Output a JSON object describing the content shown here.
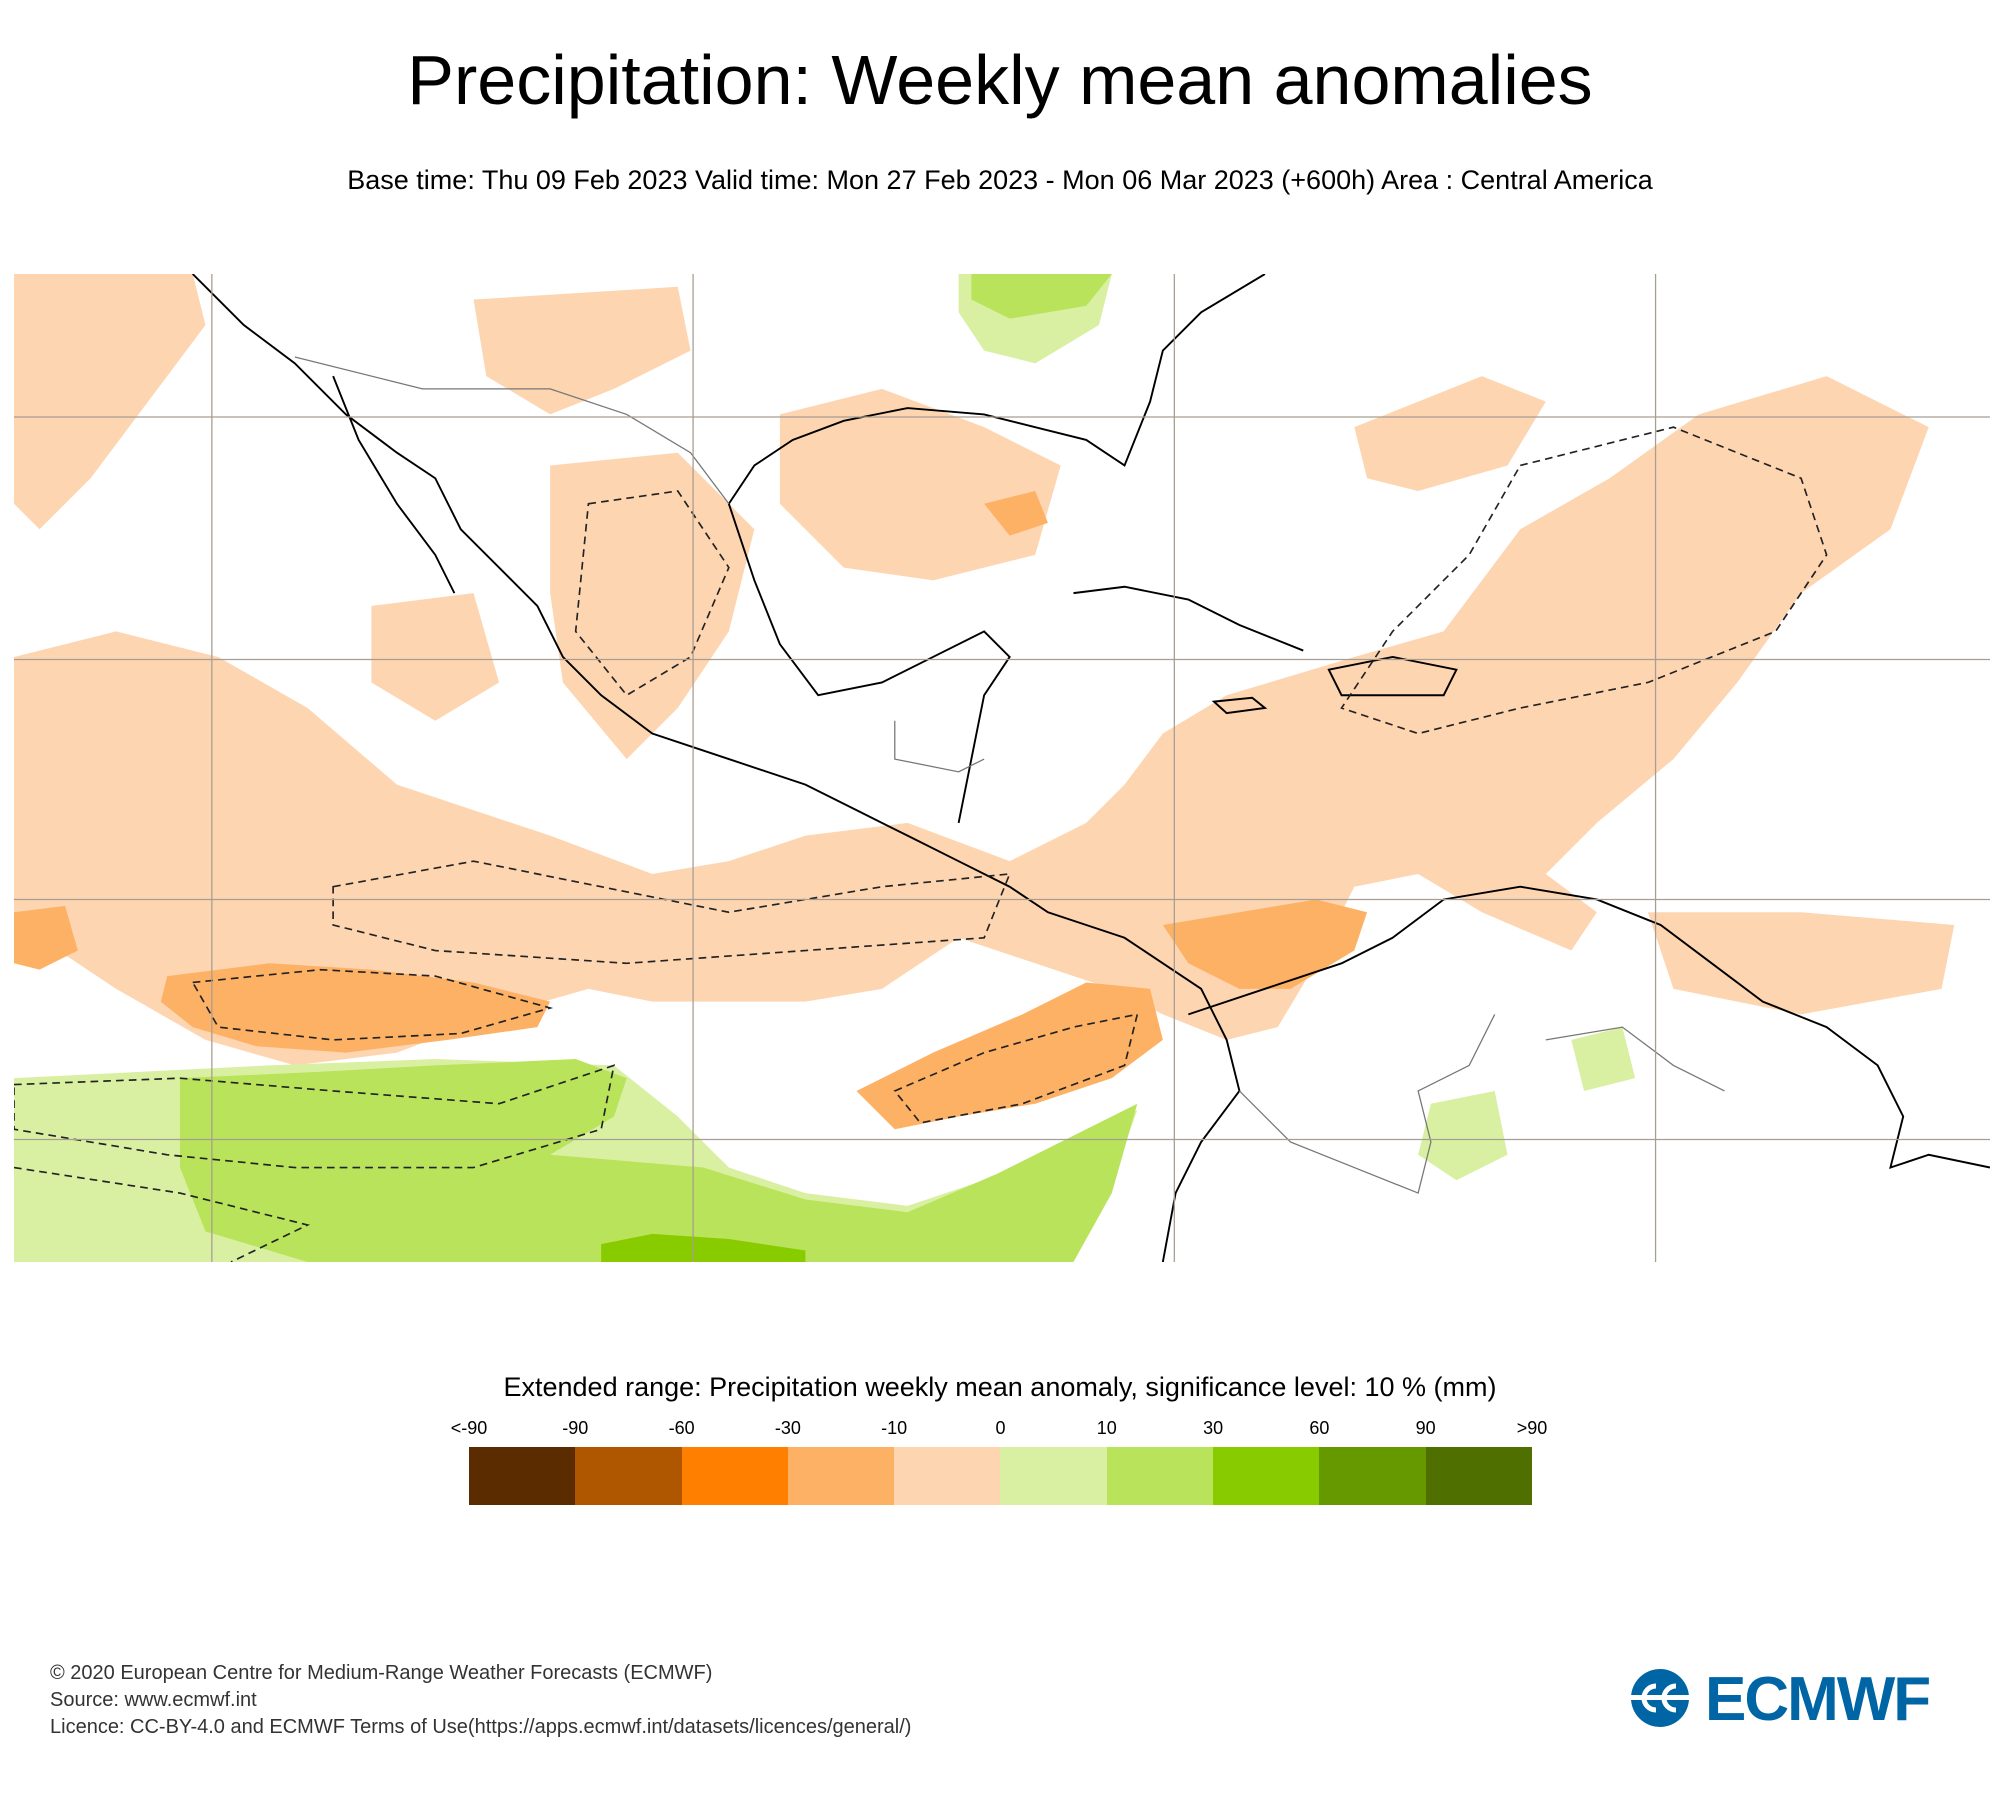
{
  "title": "Precipitation: Weekly mean anomalies",
  "subtitle": "Base time: Thu 09 Feb 2023 Valid time: Mon 27 Feb 2023 - Mon 06 Mar 2023 (+600h) Area : Central America",
  "legend": {
    "title": "Extended range: Precipitation weekly mean anomaly, significance level: 10 % (mm)",
    "labels": [
      "<-90",
      "-90",
      "-60",
      "-30",
      "-10",
      "0",
      "10",
      "30",
      "60",
      "90",
      ">90"
    ],
    "colors": [
      "#5a2c00",
      "#af5700",
      "#ff8000",
      "#fdb164",
      "#fdd5b1",
      "#d9f0a3",
      "#b8e35a",
      "#88cc00",
      "#669900",
      "#4f7000"
    ]
  },
  "footer": {
    "copyright": "© 2020 European Centre for Medium-Range Weather Forecasts (ECMWF)",
    "source": "Source: www.ecmwf.int",
    "licence": "Licence: CC-BY-4.0 and ECMWF Terms of Use(https://apps.ecmwf.int/datasets/licences/general/)"
  },
  "logo": {
    "text": "ECMWF",
    "color": "#0065a4"
  }
}
